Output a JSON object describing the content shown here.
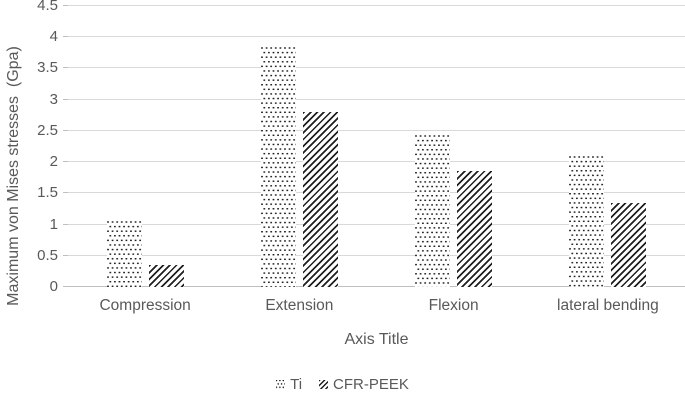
{
  "chart_data": {
    "type": "bar",
    "title": "",
    "xlabel": "Axis Title",
    "ylabel": "Maximum von Mises stresses  (Gpa)",
    "categories": [
      "Compression",
      "Extension",
      "Flexion",
      "lateral bending"
    ],
    "series": [
      {
        "name": "Ti",
        "pattern": "dots",
        "values": [
          1.05,
          3.85,
          2.43,
          2.1
        ]
      },
      {
        "name": "CFR-PEEK",
        "pattern": "hatch",
        "values": [
          0.35,
          2.8,
          1.85,
          1.35
        ]
      }
    ],
    "ylim": [
      0,
      4.5
    ],
    "yticks": [
      0,
      0.5,
      1,
      1.5,
      2,
      2.5,
      3,
      3.5,
      4,
      4.5
    ],
    "grid": true,
    "legend_position": "bottom",
    "colors": {
      "text": "#595959",
      "gridline": "#d9d9d9",
      "axis_line": "#bfbfbf",
      "pattern_ink": "#1f1f1f",
      "background": "#ffffff"
    }
  }
}
